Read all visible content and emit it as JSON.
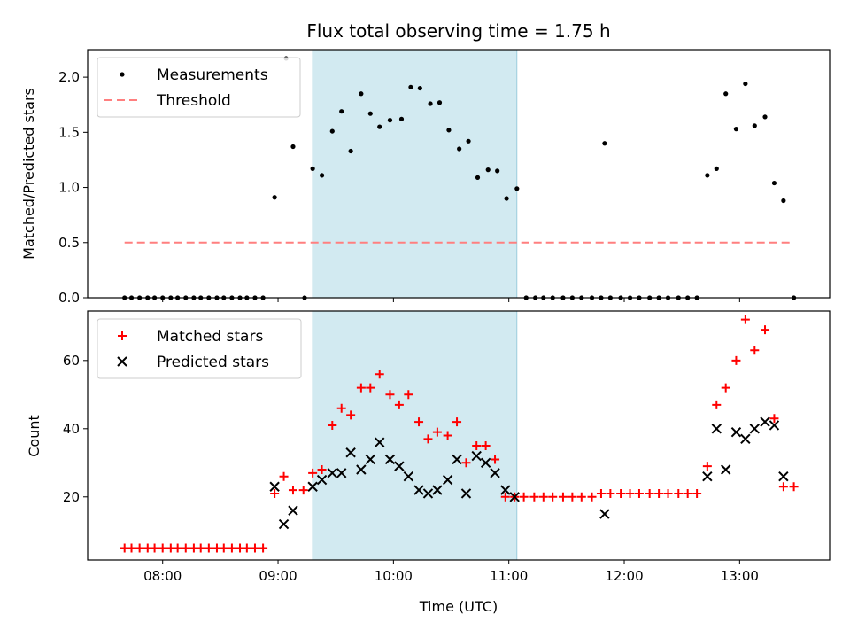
{
  "chart_data": {
    "type": "scatter",
    "title": "Flux total observing time = 1.75 h",
    "xlabel": "Time (UTC)",
    "x_ticks": [
      "08:00",
      "09:00",
      "10:00",
      "11:00",
      "12:00",
      "13:00"
    ],
    "x_tick_hours": [
      8,
      9,
      10,
      11,
      12,
      13
    ],
    "xlim_hours": [
      7.35,
      13.78
    ],
    "shaded_interval_hours": [
      9.3,
      11.07
    ],
    "shade_color": "#add8e6",
    "panels": [
      {
        "ylabel": "Matched/Predicted stars",
        "ylim": [
          0,
          2.25
        ],
        "y_ticks": [
          0.0,
          0.5,
          1.0,
          1.5,
          2.0
        ],
        "y_tick_labels": [
          "0.0",
          "0.5",
          "1.0",
          "1.5",
          "2.0"
        ],
        "legend": [
          {
            "label": "Measurements",
            "color": "#000000",
            "marker": "dot"
          },
          {
            "label": "Threshold",
            "color": "#ff7f7f",
            "marker": "dash"
          }
        ],
        "threshold": {
          "y": 0.5,
          "x_hours": [
            7.67,
            13.45
          ]
        },
        "series": [
          {
            "name": "Measurements",
            "color": "#000000",
            "marker": "dot",
            "points": [
              [
                7.67,
                0
              ],
              [
                7.73,
                0
              ],
              [
                7.8,
                0
              ],
              [
                7.87,
                0
              ],
              [
                7.93,
                0
              ],
              [
                8.0,
                0
              ],
              [
                8.07,
                0
              ],
              [
                8.13,
                0
              ],
              [
                8.2,
                0
              ],
              [
                8.27,
                0
              ],
              [
                8.33,
                0
              ],
              [
                8.4,
                0
              ],
              [
                8.47,
                0
              ],
              [
                8.53,
                0
              ],
              [
                8.6,
                0
              ],
              [
                8.67,
                0
              ],
              [
                8.73,
                0
              ],
              [
                8.8,
                0
              ],
              [
                8.87,
                0
              ],
              [
                8.97,
                0.91
              ],
              [
                9.07,
                2.17
              ],
              [
                9.13,
                1.37
              ],
              [
                9.23,
                0
              ],
              [
                9.3,
                1.17
              ],
              [
                9.38,
                1.11
              ],
              [
                9.47,
                1.51
              ],
              [
                9.55,
                1.69
              ],
              [
                9.63,
                1.33
              ],
              [
                9.72,
                1.85
              ],
              [
                9.8,
                1.67
              ],
              [
                9.88,
                1.55
              ],
              [
                9.97,
                1.61
              ],
              [
                10.07,
                1.62
              ],
              [
                10.15,
                1.91
              ],
              [
                10.23,
                1.9
              ],
              [
                10.32,
                1.76
              ],
              [
                10.4,
                1.77
              ],
              [
                10.48,
                1.52
              ],
              [
                10.57,
                1.35
              ],
              [
                10.65,
                1.42
              ],
              [
                10.73,
                1.09
              ],
              [
                10.82,
                1.16
              ],
              [
                10.9,
                1.15
              ],
              [
                10.98,
                0.9
              ],
              [
                11.07,
                0.99
              ],
              [
                11.15,
                0
              ],
              [
                11.23,
                0
              ],
              [
                11.3,
                0
              ],
              [
                11.38,
                0
              ],
              [
                11.47,
                0
              ],
              [
                11.55,
                0
              ],
              [
                11.63,
                0
              ],
              [
                11.72,
                0
              ],
              [
                11.8,
                0
              ],
              [
                11.83,
                1.4
              ],
              [
                11.88,
                0
              ],
              [
                11.97,
                0
              ],
              [
                12.05,
                0
              ],
              [
                12.13,
                0
              ],
              [
                12.22,
                0
              ],
              [
                12.3,
                0
              ],
              [
                12.38,
                0
              ],
              [
                12.47,
                0
              ],
              [
                12.55,
                0
              ],
              [
                12.63,
                0
              ],
              [
                12.72,
                1.11
              ],
              [
                12.8,
                1.17
              ],
              [
                12.88,
                1.85
              ],
              [
                12.97,
                1.53
              ],
              [
                13.05,
                1.94
              ],
              [
                13.13,
                1.56
              ],
              [
                13.22,
                1.64
              ],
              [
                13.3,
                1.04
              ],
              [
                13.38,
                0.88
              ],
              [
                13.47,
                0
              ]
            ]
          }
        ]
      },
      {
        "ylabel": "Count",
        "ylim": [
          1.5,
          74.5
        ],
        "y_ticks": [
          20,
          40,
          60
        ],
        "y_tick_labels": [
          "20",
          "40",
          "60"
        ],
        "legend": [
          {
            "label": "Matched stars",
            "color": "#ff0000",
            "marker": "plus"
          },
          {
            "label": "Predicted stars",
            "color": "#000000",
            "marker": "x"
          }
        ],
        "series": [
          {
            "name": "Matched stars",
            "color": "#ff0000",
            "marker": "plus",
            "points": [
              [
                7.67,
                5
              ],
              [
                7.73,
                5
              ],
              [
                7.8,
                5
              ],
              [
                7.87,
                5
              ],
              [
                7.93,
                5
              ],
              [
                8.0,
                5
              ],
              [
                8.07,
                5
              ],
              [
                8.13,
                5
              ],
              [
                8.2,
                5
              ],
              [
                8.27,
                5
              ],
              [
                8.33,
                5
              ],
              [
                8.4,
                5
              ],
              [
                8.47,
                5
              ],
              [
                8.53,
                5
              ],
              [
                8.6,
                5
              ],
              [
                8.67,
                5
              ],
              [
                8.73,
                5
              ],
              [
                8.8,
                5
              ],
              [
                8.87,
                5
              ],
              [
                8.97,
                21
              ],
              [
                9.05,
                26
              ],
              [
                9.13,
                22
              ],
              [
                9.22,
                22
              ],
              [
                9.3,
                27
              ],
              [
                9.38,
                28
              ],
              [
                9.47,
                41
              ],
              [
                9.55,
                46
              ],
              [
                9.63,
                44
              ],
              [
                9.72,
                52
              ],
              [
                9.8,
                52
              ],
              [
                9.88,
                56
              ],
              [
                9.97,
                50
              ],
              [
                10.05,
                47
              ],
              [
                10.13,
                50
              ],
              [
                10.22,
                42
              ],
              [
                10.3,
                37
              ],
              [
                10.38,
                39
              ],
              [
                10.47,
                38
              ],
              [
                10.55,
                42
              ],
              [
                10.63,
                30
              ],
              [
                10.72,
                35
              ],
              [
                10.8,
                35
              ],
              [
                10.88,
                31
              ],
              [
                10.97,
                20
              ],
              [
                11.05,
                20
              ],
              [
                11.13,
                20
              ],
              [
                11.22,
                20
              ],
              [
                11.3,
                20
              ],
              [
                11.38,
                20
              ],
              [
                11.47,
                20
              ],
              [
                11.55,
                20
              ],
              [
                11.63,
                20
              ],
              [
                11.72,
                20
              ],
              [
                11.8,
                21
              ],
              [
                11.88,
                21
              ],
              [
                11.97,
                21
              ],
              [
                12.05,
                21
              ],
              [
                12.13,
                21
              ],
              [
                12.22,
                21
              ],
              [
                12.3,
                21
              ],
              [
                12.38,
                21
              ],
              [
                12.47,
                21
              ],
              [
                12.55,
                21
              ],
              [
                12.63,
                21
              ],
              [
                12.72,
                29
              ],
              [
                12.8,
                47
              ],
              [
                12.88,
                52
              ],
              [
                12.97,
                60
              ],
              [
                13.05,
                72
              ],
              [
                13.13,
                63
              ],
              [
                13.22,
                69
              ],
              [
                13.3,
                43
              ],
              [
                13.38,
                23
              ],
              [
                13.47,
                23
              ]
            ]
          },
          {
            "name": "Predicted stars",
            "color": "#000000",
            "marker": "x",
            "points": [
              [
                8.97,
                23
              ],
              [
                9.05,
                12
              ],
              [
                9.13,
                16
              ],
              [
                9.3,
                23
              ],
              [
                9.38,
                25
              ],
              [
                9.47,
                27
              ],
              [
                9.55,
                27
              ],
              [
                9.63,
                33
              ],
              [
                9.72,
                28
              ],
              [
                9.8,
                31
              ],
              [
                9.88,
                36
              ],
              [
                9.97,
                31
              ],
              [
                10.05,
                29
              ],
              [
                10.13,
                26
              ],
              [
                10.22,
                22
              ],
              [
                10.3,
                21
              ],
              [
                10.38,
                22
              ],
              [
                10.47,
                25
              ],
              [
                10.55,
                31
              ],
              [
                10.63,
                21
              ],
              [
                10.72,
                32
              ],
              [
                10.8,
                30
              ],
              [
                10.88,
                27
              ],
              [
                10.97,
                22
              ],
              [
                11.05,
                20
              ],
              [
                11.83,
                15
              ],
              [
                12.72,
                26
              ],
              [
                12.8,
                40
              ],
              [
                12.88,
                28
              ],
              [
                12.97,
                39
              ],
              [
                13.05,
                37
              ],
              [
                13.13,
                40
              ],
              [
                13.22,
                42
              ],
              [
                13.3,
                41
              ],
              [
                13.38,
                26
              ]
            ]
          }
        ]
      }
    ]
  }
}
